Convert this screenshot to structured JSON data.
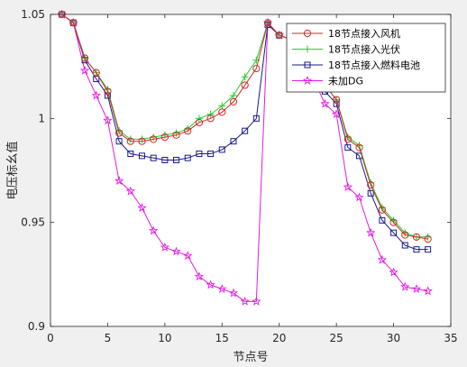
{
  "chart_data": {
    "type": "line",
    "xlabel": "节点号",
    "ylabel": "电压标幺值",
    "xlim": [
      0,
      35
    ],
    "ylim": [
      0.9,
      1.05
    ],
    "xticks": [
      0,
      5,
      10,
      15,
      20,
      25,
      30,
      35
    ],
    "yticks": [
      0.9,
      0.95,
      1,
      1.05
    ],
    "ytick_labels": [
      "0.9",
      "0.95",
      "1",
      "1.05"
    ],
    "grid": false,
    "legend_position": "top-right",
    "x": [
      1,
      2,
      3,
      4,
      5,
      6,
      7,
      8,
      9,
      10,
      11,
      12,
      13,
      14,
      15,
      16,
      17,
      18,
      19,
      20,
      21,
      22,
      23,
      24,
      25,
      26,
      27,
      28,
      29,
      30,
      31,
      32,
      33
    ],
    "series": [
      {
        "name": "18节点接入风机",
        "color": "#d62728",
        "marker": "circle",
        "values": [
          1.05,
          1.046,
          1.029,
          1.022,
          1.013,
          0.993,
          0.989,
          0.989,
          0.99,
          0.991,
          0.992,
          0.994,
          0.998,
          1.0,
          1.003,
          1.008,
          1.016,
          1.024,
          1.046,
          1.04,
          1.038,
          1.035,
          1.025,
          1.016,
          1.009,
          0.99,
          0.986,
          0.968,
          0.956,
          0.95,
          0.944,
          0.943,
          0.942
        ]
      },
      {
        "name": "18节点接入光伏",
        "color": "#1fd12c",
        "marker": "plus",
        "values": [
          1.05,
          1.046,
          1.029,
          1.022,
          1.014,
          0.994,
          0.99,
          0.99,
          0.991,
          0.992,
          0.993,
          0.995,
          1.0,
          1.002,
          1.006,
          1.011,
          1.02,
          1.028,
          1.046,
          1.04,
          1.038,
          1.035,
          1.025,
          1.016,
          1.009,
          0.991,
          0.987,
          0.969,
          0.957,
          0.951,
          0.945,
          0.943,
          0.943
        ]
      },
      {
        "name": "18节点接入燃料电池",
        "color": "#1a1a8c",
        "marker": "square",
        "values": [
          1.05,
          1.046,
          1.028,
          1.019,
          1.011,
          0.989,
          0.983,
          0.982,
          0.981,
          0.98,
          0.98,
          0.981,
          0.983,
          0.983,
          0.985,
          0.989,
          0.994,
          1.0,
          1.045,
          1.04,
          1.038,
          1.035,
          1.023,
          1.013,
          1.007,
          0.986,
          0.982,
          0.964,
          0.951,
          0.945,
          0.939,
          0.937,
          0.937
        ]
      },
      {
        "name": "未加DG",
        "color": "#e21ce2",
        "marker": "star",
        "values": [
          1.05,
          1.046,
          1.023,
          1.011,
          0.999,
          0.97,
          0.965,
          0.957,
          0.946,
          0.938,
          0.936,
          0.934,
          0.924,
          0.92,
          0.918,
          0.916,
          0.912,
          0.912,
          1.046,
          1.04,
          1.038,
          1.035,
          1.019,
          1.007,
          1.002,
          0.967,
          0.962,
          0.945,
          0.932,
          0.926,
          0.919,
          0.918,
          0.917
        ]
      }
    ]
  }
}
